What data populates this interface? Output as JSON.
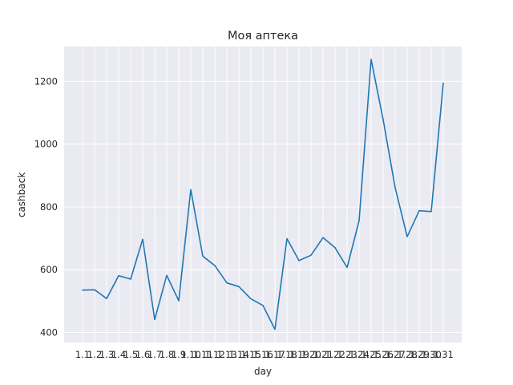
{
  "chart_data": {
    "type": "line",
    "title": "Моя аптека",
    "xlabel": "day",
    "ylabel": "cashback",
    "categories": [
      "1.1",
      "1.2",
      "1.3",
      "1.4",
      "1.5",
      "1.6",
      "1.7",
      "1.8",
      "1.9",
      "1.10",
      "1.11",
      "1.12",
      "1.13",
      "1.14",
      "1.15",
      "1.16",
      "1.17",
      "1.18",
      "1.19",
      "1.20",
      "1.21",
      "1.22",
      "1.23",
      "1.24",
      "1.25",
      "1.26",
      "1.27",
      "1.28",
      "1.29",
      "1.30",
      "1.31"
    ],
    "series": [
      {
        "values": [
          535,
          536,
          508,
          581,
          570,
          697,
          441,
          582,
          501,
          855,
          643,
          613,
          558,
          546,
          507,
          486,
          410,
          699,
          629,
          646,
          702,
          670,
          607,
          756,
          1270,
          1078,
          861,
          705,
          788,
          785,
          1194
        ],
        "color": "#1f77b4"
      }
    ],
    "yticks": [
      400,
      600,
      800,
      1000,
      1200
    ],
    "ylim": [
      368,
      1311
    ],
    "grid": true,
    "background": "#eaeaf2",
    "legend": "none"
  }
}
